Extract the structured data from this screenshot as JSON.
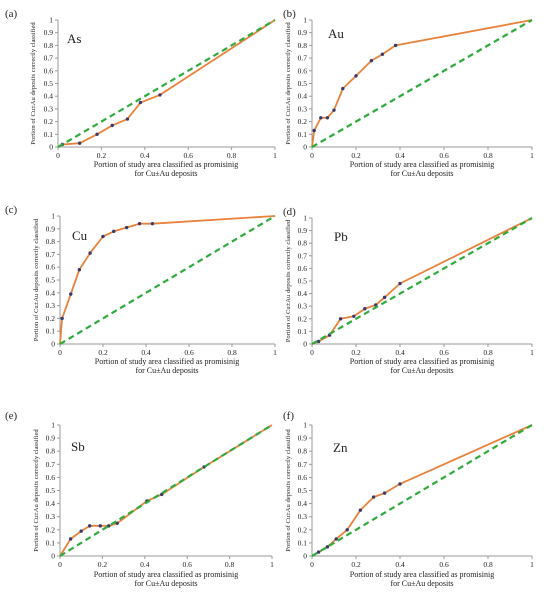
{
  "chart_data": [
    {
      "type": "line",
      "panel_label": "(a)",
      "element": "As",
      "ylabel": "Portion of Cu±Au deposits correctly classified",
      "xlabel": "Portion of study area classified as promisinig for Cu±Au deposits",
      "xlim": [
        0,
        1
      ],
      "ylim": [
        0,
        1
      ],
      "xticks": [
        "0",
        "0.2",
        "0.4",
        "0.6",
        "0.8",
        "1"
      ],
      "yticks": [
        "0",
        "0.1",
        "0.2",
        "0.3",
        "0.4",
        "0.5",
        "0.6",
        "0.7",
        "0.8",
        "0.9",
        "1"
      ],
      "series": [
        {
          "role": "prediction-rate",
          "color": "#e8823a",
          "style": "solid",
          "x": [
            0,
            0.02,
            0.1,
            0.18,
            0.25,
            0.32,
            0.38,
            0.47,
            1
          ],
          "y": [
            0,
            0.02,
            0.03,
            0.1,
            0.17,
            0.22,
            0.35,
            0.41,
            1
          ]
        },
        {
          "role": "reference",
          "color": "#2eab3c",
          "style": "dashed",
          "x": [
            0,
            1
          ],
          "y": [
            0,
            1
          ]
        }
      ]
    },
    {
      "type": "line",
      "panel_label": "(b)",
      "element": "Au",
      "ylabel": "Portion of Cu±Au deposits correctly classified",
      "xlabel": "Portion of study area classified as promisinig for Cu±Au deposits",
      "xlim": [
        0,
        1
      ],
      "ylim": [
        0,
        1
      ],
      "xticks": [
        "0",
        "0.2",
        "0.4",
        "0.6",
        "0.8",
        "1"
      ],
      "yticks": [
        "0",
        "0.1",
        "0.2",
        "0.3",
        "0.4",
        "0.5",
        "0.6",
        "0.7",
        "0.8",
        "0.9",
        "1"
      ],
      "series": [
        {
          "role": "prediction-rate",
          "color": "#e8823a",
          "style": "solid",
          "x": [
            0,
            0.01,
            0.04,
            0.07,
            0.1,
            0.14,
            0.2,
            0.27,
            0.32,
            0.38,
            1
          ],
          "y": [
            0,
            0.13,
            0.23,
            0.23,
            0.29,
            0.46,
            0.56,
            0.68,
            0.73,
            0.8,
            1
          ]
        },
        {
          "role": "reference",
          "color": "#2eab3c",
          "style": "dashed",
          "x": [
            0,
            1
          ],
          "y": [
            0,
            1
          ]
        }
      ]
    },
    {
      "type": "line",
      "panel_label": "(c)",
      "element": "Cu",
      "ylabel": "Portion of Cu±Au deposits correctly classified",
      "xlabel": "Portion of study area classified as promisinig for Cu±Au deposits",
      "xlim": [
        0,
        1
      ],
      "ylim": [
        0,
        1
      ],
      "xticks": [
        "0",
        "0.2",
        "0.4",
        "0.6",
        "0.8",
        "1"
      ],
      "yticks": [
        "0",
        "0.1",
        "0.2",
        "0.3",
        "0.4",
        "0.5",
        "0.6",
        "0.7",
        "0.8",
        "0.9",
        "1"
      ],
      "series": [
        {
          "role": "prediction-rate",
          "color": "#e8823a",
          "style": "solid",
          "x": [
            0,
            0.01,
            0.05,
            0.09,
            0.14,
            0.2,
            0.25,
            0.31,
            0.37,
            0.43,
            1
          ],
          "y": [
            0,
            0.2,
            0.39,
            0.58,
            0.71,
            0.84,
            0.88,
            0.91,
            0.94,
            0.94,
            1
          ]
        },
        {
          "role": "reference",
          "color": "#2eab3c",
          "style": "dashed",
          "x": [
            0,
            1
          ],
          "y": [
            0,
            1
          ]
        }
      ]
    },
    {
      "type": "line",
      "panel_label": "(d)",
      "element": "Pb",
      "ylabel": "Portion of Cu±Au deposits correctly classified",
      "xlabel": "Portion of study area classified as promisinig for Cu±Au deposits",
      "xlim": [
        0,
        1
      ],
      "ylim": [
        0,
        1
      ],
      "xticks": [
        "0",
        "0.2",
        "0.4",
        "0.6",
        "0.8",
        "1"
      ],
      "yticks": [
        "0",
        "0.1",
        "0.2",
        "0.3",
        "0.4",
        "0.5",
        "0.6",
        "0.7",
        "0.8",
        "0.9",
        "1"
      ],
      "series": [
        {
          "role": "prediction-rate",
          "color": "#e8823a",
          "style": "solid",
          "x": [
            0,
            0.03,
            0.08,
            0.13,
            0.19,
            0.24,
            0.29,
            0.33,
            0.4,
            1
          ],
          "y": [
            0,
            0.02,
            0.07,
            0.2,
            0.22,
            0.28,
            0.31,
            0.37,
            0.48,
            1
          ]
        },
        {
          "role": "reference",
          "color": "#2eab3c",
          "style": "dashed",
          "x": [
            0,
            1
          ],
          "y": [
            0,
            1
          ]
        }
      ]
    },
    {
      "type": "line",
      "panel_label": "(e)",
      "element": "Sb",
      "ylabel": "Portion of Cu±Au deposits correctly classified",
      "xlabel": "Portion of study area classified as promisinig for Cu±Au deposits",
      "xlim": [
        0,
        1
      ],
      "ylim": [
        0,
        1
      ],
      "xticks": [
        "0",
        "0.2",
        "0.4",
        "0.6",
        "0.8",
        "1"
      ],
      "yticks": [
        "0",
        "0.1",
        "0.2",
        "0.3",
        "0.4",
        "0.5",
        "0.6",
        "0.7",
        "0.8",
        "0.9",
        "1"
      ],
      "series": [
        {
          "role": "prediction-rate",
          "color": "#e8823a",
          "style": "solid",
          "x": [
            0,
            0.05,
            0.1,
            0.14,
            0.19,
            0.23,
            0.27,
            0.41,
            0.48,
            0.68,
            1
          ],
          "y": [
            0,
            0.13,
            0.19,
            0.23,
            0.23,
            0.23,
            0.25,
            0.42,
            0.47,
            0.68,
            1
          ]
        },
        {
          "role": "reference",
          "color": "#2eab3c",
          "style": "dashed",
          "x": [
            0,
            1
          ],
          "y": [
            0,
            1
          ]
        }
      ]
    },
    {
      "type": "line",
      "panel_label": "(f)",
      "element": "Zn",
      "ylabel": "Portion of Cu±Au deposits correctly classified",
      "xlabel": "Portion of study area classified as promisinig for Cu±Au deposits",
      "xlim": [
        0,
        1
      ],
      "ylim": [
        0,
        1
      ],
      "xticks": [
        "0",
        "0.2",
        "0.4",
        "0.6",
        "0.8",
        "1"
      ],
      "yticks": [
        "0",
        "0.1",
        "0.2",
        "0.3",
        "0.4",
        "0.5",
        "0.6",
        "0.7",
        "0.8",
        "0.9",
        "1"
      ],
      "series": [
        {
          "role": "prediction-rate",
          "color": "#e8823a",
          "style": "solid",
          "x": [
            0,
            0.03,
            0.07,
            0.11,
            0.16,
            0.22,
            0.28,
            0.33,
            0.4,
            1
          ],
          "y": [
            0,
            0.03,
            0.07,
            0.13,
            0.2,
            0.35,
            0.45,
            0.48,
            0.55,
            1
          ]
        },
        {
          "role": "reference",
          "color": "#2eab3c",
          "style": "dashed",
          "x": [
            0,
            1
          ],
          "y": [
            0,
            1
          ]
        }
      ]
    }
  ]
}
